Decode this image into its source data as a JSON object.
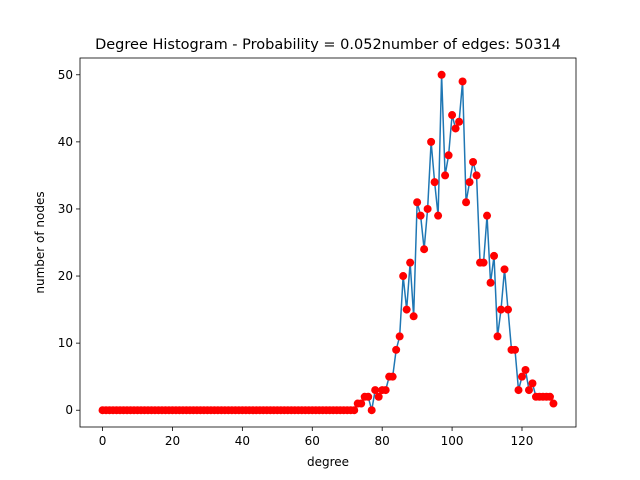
{
  "chart_data": {
    "type": "line",
    "title": "Degree Histogram - Probability = 0.052number of edges: 50314",
    "xlabel": "degree",
    "ylabel": "number of nodes",
    "xlim": [
      -6.45,
      135.45
    ],
    "ylim": [
      -2.5,
      52.5
    ],
    "xticks": [
      0,
      20,
      40,
      60,
      80,
      100,
      120
    ],
    "yticks": [
      0,
      10,
      20,
      30,
      40,
      50
    ],
    "grid": false,
    "legend": "none",
    "line_color": "#1f77b4",
    "marker_color": "#ff0000",
    "series": [
      {
        "x": [
          0,
          1,
          2,
          3,
          4,
          5,
          6,
          7,
          8,
          9,
          10,
          11,
          12,
          13,
          14,
          15,
          16,
          17,
          18,
          19,
          20,
          21,
          22,
          23,
          24,
          25,
          26,
          27,
          28,
          29,
          30,
          31,
          32,
          33,
          34,
          35,
          36,
          37,
          38,
          39,
          40,
          41,
          42,
          43,
          44,
          45,
          46,
          47,
          48,
          49,
          50,
          51,
          52,
          53,
          54,
          55,
          56,
          57,
          58,
          59,
          60,
          61,
          62,
          63,
          64,
          65,
          66,
          67,
          68,
          69,
          70,
          71,
          72,
          73,
          74,
          75,
          76,
          77,
          78,
          79,
          80,
          81,
          82,
          83,
          84,
          85,
          86,
          87,
          88,
          89,
          90,
          91,
          92,
          93,
          94,
          95,
          96,
          97,
          98,
          99,
          100,
          101,
          102,
          103,
          104,
          105,
          106,
          107,
          108,
          109,
          110,
          111,
          112,
          113,
          114,
          115,
          116,
          117,
          118,
          119,
          120,
          121,
          122,
          123,
          124,
          125,
          126,
          127,
          128,
          129
        ],
        "y": [
          0,
          0,
          0,
          0,
          0,
          0,
          0,
          0,
          0,
          0,
          0,
          0,
          0,
          0,
          0,
          0,
          0,
          0,
          0,
          0,
          0,
          0,
          0,
          0,
          0,
          0,
          0,
          0,
          0,
          0,
          0,
          0,
          0,
          0,
          0,
          0,
          0,
          0,
          0,
          0,
          0,
          0,
          0,
          0,
          0,
          0,
          0,
          0,
          0,
          0,
          0,
          0,
          0,
          0,
          0,
          0,
          0,
          0,
          0,
          0,
          0,
          0,
          0,
          0,
          0,
          0,
          0,
          0,
          0,
          0,
          0,
          0,
          0,
          1,
          1,
          2,
          2,
          0,
          3,
          2,
          3,
          3,
          5,
          5,
          9,
          11,
          20,
          15,
          22,
          14,
          31,
          29,
          24,
          30,
          40,
          34,
          29,
          50,
          35,
          38,
          44,
          42,
          43,
          49,
          31,
          34,
          37,
          35,
          22,
          22,
          29,
          19,
          23,
          11,
          15,
          21,
          15,
          9,
          9,
          3,
          5,
          6,
          3,
          4,
          2,
          2,
          2,
          2,
          2,
          1
        ]
      }
    ]
  }
}
